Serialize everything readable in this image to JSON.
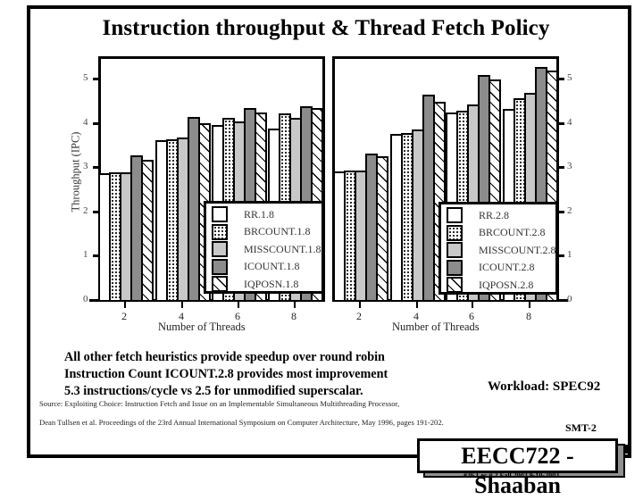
{
  "slide": {
    "title": "Instruction throughput & Thread Fetch Policy",
    "bullets": [
      "All other fetch heuristics provide speedup over round robin",
      "Instruction Count ICOUNT.2.8  provides  most improvement",
      "5.3 instructions/cycle vs  2.5 for unmodified superscalar."
    ],
    "workload": "Workload: SPEC92",
    "source_line1": "Source:  Exploiting Choice: Instruction Fetch and Issue on an Implementable Simultaneous Multithreading Processor,",
    "source_line2": "Dean Tullsen et al. Proceedings of the 23rd Annual International Symposium on Computer Architecture, May 1996, pages 191-202.",
    "tag": "SMT-2",
    "course": "EECC722 - Shaaban",
    "footer_meta": "#36   Lec # 2   Fall 2003  9-10-2003"
  },
  "colors": {
    "white": "#ffffff",
    "light_gray": "#c8c8c8",
    "dark_gray": "#8c8c8c",
    "border": "#000000"
  },
  "chart_data": [
    {
      "type": "bar",
      "title": "",
      "xlabel": "Number of Threads",
      "ylabel": "Throughput (IPC)",
      "categories": [
        "2",
        "4",
        "6",
        "8"
      ],
      "ylim": [
        0,
        5.5
      ],
      "yticks": [
        "0",
        "1",
        "2",
        "3",
        "4",
        "5"
      ],
      "grid": false,
      "legend_position": "lower right inside",
      "series": [
        {
          "name": "RR.1.8",
          "pattern": "white",
          "values": [
            2.86,
            3.61,
            3.95,
            3.88
          ]
        },
        {
          "name": "BRCOUNT.1.8",
          "pattern": "dotted",
          "values": [
            2.89,
            3.63,
            4.11,
            4.22
          ]
        },
        {
          "name": "MISSCOUNT.1.8",
          "pattern": "light-gray",
          "values": [
            2.89,
            3.66,
            4.04,
            4.11
          ]
        },
        {
          "name": "ICOUNT.1.8",
          "pattern": "dark-gray",
          "values": [
            3.27,
            4.13,
            4.34,
            4.38
          ]
        },
        {
          "name": "IQPOSN.1.8",
          "pattern": "hatched",
          "values": [
            3.17,
            4.0,
            4.24,
            4.33
          ]
        }
      ]
    },
    {
      "type": "bar",
      "title": "",
      "xlabel": "Number of Threads",
      "ylabel": "",
      "categories": [
        "2",
        "4",
        "6",
        "8"
      ],
      "ylim": [
        0,
        5.5
      ],
      "yticks": [
        "0",
        "1",
        "2",
        "3",
        "4",
        "5"
      ],
      "grid": false,
      "legend_position": "lower right inside",
      "series": [
        {
          "name": "RR.2.8",
          "pattern": "white",
          "values": [
            2.9,
            3.74,
            4.24,
            4.31
          ]
        },
        {
          "name": "BRCOUNT.2.8",
          "pattern": "dotted",
          "values": [
            2.92,
            3.77,
            4.28,
            4.56
          ]
        },
        {
          "name": "MISSCOUNT.2.8",
          "pattern": "light-gray",
          "values": [
            2.92,
            3.85,
            4.42,
            4.68
          ]
        },
        {
          "name": "ICOUNT.2.8",
          "pattern": "dark-gray",
          "values": [
            3.3,
            4.63,
            5.08,
            5.27
          ]
        },
        {
          "name": "IQPOSN.2.8",
          "pattern": "hatched",
          "values": [
            3.25,
            4.47,
            4.97,
            5.18
          ]
        }
      ]
    }
  ]
}
